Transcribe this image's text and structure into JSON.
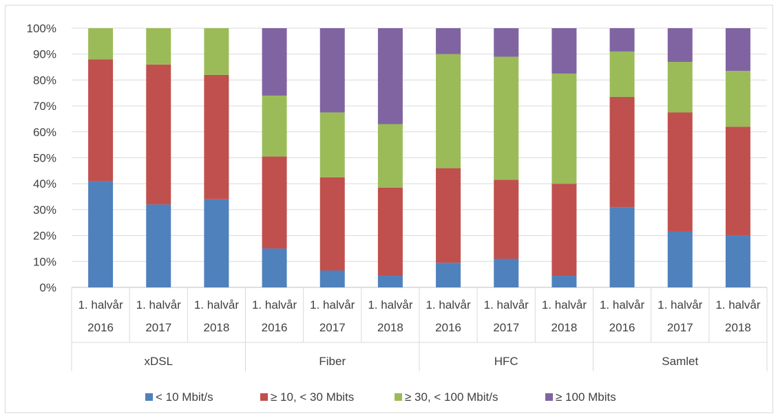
{
  "chart_data": {
    "type": "bar",
    "stacked": "percent",
    "title": "",
    "xlabel": "",
    "ylabel": "",
    "ylim": [
      0,
      100
    ],
    "y_ticks": [
      "0%",
      "10%",
      "20%",
      "30%",
      "40%",
      "50%",
      "60%",
      "70%",
      "80%",
      "90%",
      "100%"
    ],
    "grid": true,
    "legend_position": "bottom",
    "groups": [
      {
        "label": "xDSL",
        "categories": [
          {
            "line1": "1. halvår",
            "line2": "2016"
          },
          {
            "line1": "1. halvår",
            "line2": "2017"
          },
          {
            "line1": "1. halvår",
            "line2": "2018"
          }
        ]
      },
      {
        "label": "Fiber",
        "categories": [
          {
            "line1": "1. halvår",
            "line2": "2016"
          },
          {
            "line1": "1. halvår",
            "line2": "2017"
          },
          {
            "line1": "1. halvår",
            "line2": "2018"
          }
        ]
      },
      {
        "label": "HFC",
        "categories": [
          {
            "line1": "1. halvår",
            "line2": "2016"
          },
          {
            "line1": "1. halvår",
            "line2": "2017"
          },
          {
            "line1": "1. halvår",
            "line2": "2018"
          }
        ]
      },
      {
        "label": "Samlet",
        "categories": [
          {
            "line1": "1. halvår",
            "line2": "2016"
          },
          {
            "line1": "1. halvår",
            "line2": "2017"
          },
          {
            "line1": "1. halvår",
            "line2": "2018"
          }
        ]
      }
    ],
    "series": [
      {
        "name": "< 10 Mbit/s",
        "color": "#4f81bd",
        "values": [
          41,
          32,
          34,
          15,
          6.5,
          4.5,
          9.5,
          11,
          4.5,
          31,
          21.5,
          20
        ]
      },
      {
        "name": "≥ 10, < 30 Mbits",
        "color": "#c0504d",
        "values": [
          47,
          54,
          48,
          35.5,
          36,
          34,
          36.5,
          30.5,
          35.5,
          42.5,
          46,
          42
        ]
      },
      {
        "name": "≥ 30, < 100 Mbit/s",
        "color": "#9bbb59",
        "values": [
          12,
          14,
          18,
          23.5,
          25,
          24.5,
          44,
          47.5,
          42.5,
          17.5,
          19.5,
          21.5
        ]
      },
      {
        "name": "≥ 100 Mbits",
        "color": "#8064a2",
        "values": [
          0,
          0,
          0,
          26,
          32.5,
          37,
          10,
          11,
          17.5,
          9,
          13,
          16.5
        ]
      }
    ]
  }
}
